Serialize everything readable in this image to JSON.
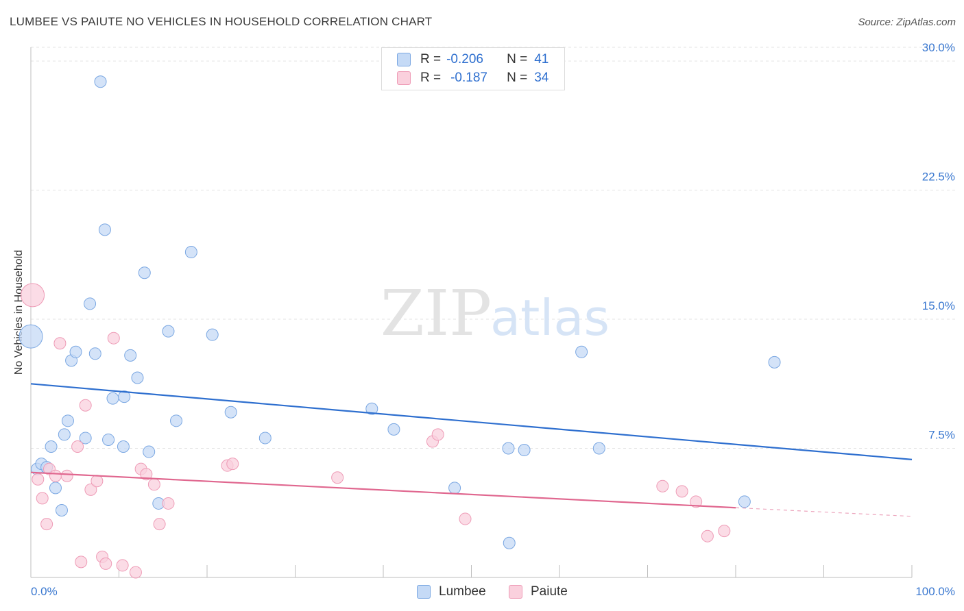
{
  "title": "LUMBEE VS PAIUTE NO VEHICLES IN HOUSEHOLD CORRELATION CHART",
  "source": "Source: ZipAtlas.com",
  "watermark": {
    "zip": "ZIP",
    "atlas": "atlas"
  },
  "legend": {
    "r_label": "R =",
    "n_label": "N =",
    "series": [
      {
        "name": "Lumbee",
        "r": "-0.206",
        "n": "41"
      },
      {
        "name": "Paiute",
        "r": "-0.187",
        "n": "34"
      }
    ]
  },
  "colors": {
    "lumbee_fill": "#c5daf6",
    "lumbee_stroke": "#7aa7e2",
    "lumbee_line": "#2e6fcf",
    "paiute_fill": "#fad0dd",
    "paiute_stroke": "#ee9bb6",
    "paiute_line": "#e0678f",
    "tick_label": "#3a78d0",
    "grid": "#e3e3e3"
  },
  "chart_data": {
    "type": "scatter",
    "title": "LUMBEE VS PAIUTE NO VEHICLES IN HOUSEHOLD CORRELATION CHART",
    "xlabel": "",
    "ylabel": "No Vehicles in Household",
    "xlim": [
      0,
      100
    ],
    "ylim": [
      0,
      30.8
    ],
    "x_tick_labels": [
      "0.0%",
      "100.0%"
    ],
    "y_ticks": [
      7.5,
      15.0,
      22.5,
      30.0
    ],
    "y_tick_labels": [
      "7.5%",
      "15.0%",
      "22.5%",
      "30.0%"
    ],
    "grid": true,
    "series": [
      {
        "name": "Lumbee",
        "points": [
          {
            "x": 0.0,
            "y": 14.0,
            "big": true
          },
          {
            "x": 0.7,
            "y": 6.3
          },
          {
            "x": 1.2,
            "y": 6.6
          },
          {
            "x": 1.8,
            "y": 6.4
          },
          {
            "x": 2.3,
            "y": 7.6
          },
          {
            "x": 2.8,
            "y": 5.2
          },
          {
            "x": 3.5,
            "y": 3.9
          },
          {
            "x": 3.8,
            "y": 8.3
          },
          {
            "x": 4.2,
            "y": 9.1
          },
          {
            "x": 4.6,
            "y": 12.6
          },
          {
            "x": 5.1,
            "y": 13.1
          },
          {
            "x": 6.2,
            "y": 8.1
          },
          {
            "x": 6.7,
            "y": 15.9
          },
          {
            "x": 7.3,
            "y": 13.0
          },
          {
            "x": 7.9,
            "y": 28.8
          },
          {
            "x": 8.4,
            "y": 20.2
          },
          {
            "x": 8.8,
            "y": 8.0
          },
          {
            "x": 9.3,
            "y": 10.4
          },
          {
            "x": 10.5,
            "y": 7.6
          },
          {
            "x": 10.6,
            "y": 10.5
          },
          {
            "x": 11.3,
            "y": 12.9
          },
          {
            "x": 12.1,
            "y": 11.6
          },
          {
            "x": 12.9,
            "y": 17.7
          },
          {
            "x": 13.4,
            "y": 7.3
          },
          {
            "x": 14.5,
            "y": 4.3
          },
          {
            "x": 15.6,
            "y": 14.3
          },
          {
            "x": 16.5,
            "y": 9.1
          },
          {
            "x": 18.2,
            "y": 18.9
          },
          {
            "x": 20.6,
            "y": 14.1
          },
          {
            "x": 22.7,
            "y": 9.6
          },
          {
            "x": 26.6,
            "y": 8.1
          },
          {
            "x": 38.7,
            "y": 9.8
          },
          {
            "x": 41.2,
            "y": 8.6
          },
          {
            "x": 48.1,
            "y": 5.2
          },
          {
            "x": 54.2,
            "y": 7.5
          },
          {
            "x": 54.3,
            "y": 2.0
          },
          {
            "x": 56.0,
            "y": 7.4
          },
          {
            "x": 62.5,
            "y": 13.1
          },
          {
            "x": 64.5,
            "y": 7.5
          },
          {
            "x": 81.0,
            "y": 4.4
          },
          {
            "x": 84.4,
            "y": 12.5
          }
        ],
        "trend": {
          "x0": 0,
          "y0": 11.25,
          "x1": 100,
          "y1": 6.85
        }
      },
      {
        "name": "Paiute",
        "points": [
          {
            "x": 0.2,
            "y": 16.4,
            "big": true
          },
          {
            "x": 0.8,
            "y": 5.7
          },
          {
            "x": 1.3,
            "y": 4.6
          },
          {
            "x": 1.8,
            "y": 3.1
          },
          {
            "x": 2.1,
            "y": 6.3
          },
          {
            "x": 2.8,
            "y": 5.9
          },
          {
            "x": 3.3,
            "y": 13.6
          },
          {
            "x": 4.1,
            "y": 5.9
          },
          {
            "x": 5.3,
            "y": 7.6
          },
          {
            "x": 5.7,
            "y": 0.9
          },
          {
            "x": 6.2,
            "y": 10.0
          },
          {
            "x": 6.8,
            "y": 5.1
          },
          {
            "x": 7.5,
            "y": 5.6
          },
          {
            "x": 8.1,
            "y": 1.2
          },
          {
            "x": 8.5,
            "y": 0.8
          },
          {
            "x": 9.4,
            "y": 13.9
          },
          {
            "x": 10.4,
            "y": 0.7
          },
          {
            "x": 11.9,
            "y": 0.3
          },
          {
            "x": 12.5,
            "y": 6.3
          },
          {
            "x": 13.1,
            "y": 6.0
          },
          {
            "x": 14.0,
            "y": 5.4
          },
          {
            "x": 14.6,
            "y": 3.1
          },
          {
            "x": 15.6,
            "y": 4.3
          },
          {
            "x": 22.3,
            "y": 6.5
          },
          {
            "x": 22.9,
            "y": 6.6
          },
          {
            "x": 34.8,
            "y": 5.8
          },
          {
            "x": 45.6,
            "y": 7.9
          },
          {
            "x": 46.2,
            "y": 8.3
          },
          {
            "x": 49.3,
            "y": 3.4
          },
          {
            "x": 71.7,
            "y": 5.3
          },
          {
            "x": 73.9,
            "y": 5.0
          },
          {
            "x": 75.5,
            "y": 4.4
          },
          {
            "x": 76.8,
            "y": 2.4
          },
          {
            "x": 78.7,
            "y": 2.7
          }
        ],
        "trend": {
          "x0": 0,
          "y0": 6.1,
          "x1": 80,
          "y1": 4.05
        },
        "trend_dashed": {
          "x0": 80,
          "y0": 4.05,
          "x1": 100,
          "y1": 3.55
        }
      }
    ]
  }
}
